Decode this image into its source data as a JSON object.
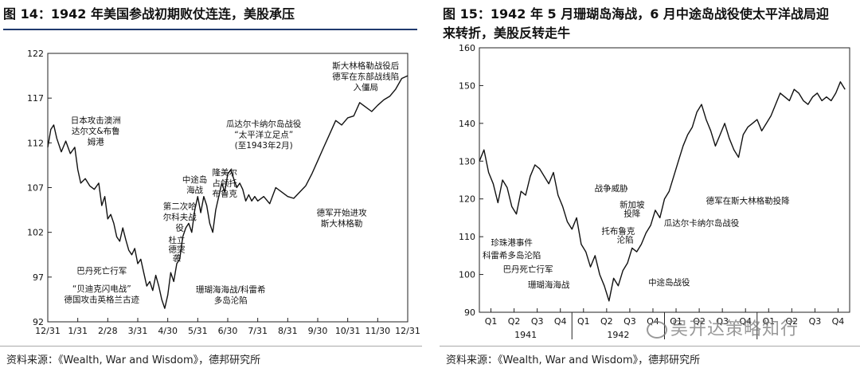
{
  "left": {
    "title": "图 14：1942 年美国参战初期败仗连连，美股承压",
    "source": "资料来源：《Wealth, War and Wisdom》，德邦研究所",
    "chart_data": {
      "type": "line",
      "ylim": [
        92,
        122
      ],
      "yticks": [
        92,
        97,
        102,
        107,
        112,
        117,
        122
      ],
      "xlim": [
        0,
        12
      ],
      "xticks": [
        "12/31",
        "1/31",
        "2/28",
        "3/31",
        "4/30",
        "5/31",
        "6/30",
        "7/31",
        "8/31",
        "9/30",
        "10/31",
        "11/30",
        "12/31"
      ],
      "series": [
        {
          "x": [
            0,
            0.1,
            0.2,
            0.3,
            0.45,
            0.6,
            0.75,
            0.9,
            1.0,
            1.1,
            1.25,
            1.4,
            1.55,
            1.7,
            1.8,
            1.9,
            2.0,
            2.1,
            2.2,
            2.3,
            2.4,
            2.5,
            2.6,
            2.7,
            2.8,
            2.9,
            3.0,
            3.1,
            3.2,
            3.3,
            3.4,
            3.5,
            3.6,
            3.7,
            3.8,
            3.9,
            4.0,
            4.1,
            4.2,
            4.3,
            4.4,
            4.5,
            4.6,
            4.7,
            4.8,
            4.9,
            5.0,
            5.1,
            5.2,
            5.3,
            5.4,
            5.5,
            5.6,
            5.7,
            5.8,
            5.9,
            6.0,
            6.1,
            6.2,
            6.3,
            6.4,
            6.5,
            6.6,
            6.7,
            6.8,
            6.9,
            7.0,
            7.2,
            7.4,
            7.6,
            7.8,
            8.0,
            8.2,
            8.4,
            8.6,
            8.8,
            9.0,
            9.2,
            9.4,
            9.6,
            9.8,
            10.0,
            10.2,
            10.4,
            10.6,
            10.8,
            11.0,
            11.2,
            11.4,
            11.6,
            11.8,
            12.0
          ],
          "y": [
            111.5,
            113.5,
            114.0,
            112.5,
            111.0,
            112.2,
            110.8,
            111.5,
            109.0,
            107.5,
            108.0,
            107.2,
            106.8,
            107.5,
            105.0,
            106.0,
            103.5,
            104.0,
            103.0,
            101.5,
            101.0,
            102.5,
            101.2,
            100.0,
            99.5,
            100.2,
            98.5,
            99.0,
            97.5,
            96.0,
            96.5,
            95.5,
            97.2,
            96.0,
            94.5,
            93.5,
            95.0,
            97.5,
            96.5,
            98.5,
            99.0,
            101.5,
            102.5,
            103.0,
            102.0,
            104.5,
            106.0,
            104.2,
            106.0,
            105.0,
            103.0,
            102.0,
            104.5,
            106.0,
            107.5,
            106.5,
            108.5,
            109.0,
            108.0,
            107.0,
            107.5,
            106.8,
            105.5,
            106.2,
            105.5,
            106.0,
            105.5,
            106.0,
            105.2,
            107.0,
            106.5,
            106.0,
            105.8,
            106.5,
            107.2,
            108.5,
            110.0,
            111.5,
            113.0,
            114.5,
            114.0,
            114.8,
            115.0,
            116.5,
            116.0,
            115.5,
            116.2,
            116.8,
            117.2,
            118.0,
            119.2,
            119.5
          ]
        }
      ],
      "annotations": [
        {
          "text": "日本攻击澳洲",
          "x": 1.6,
          "y": 114.2
        },
        {
          "text": "达尔文&布鲁",
          "x": 1.6,
          "y": 113.0
        },
        {
          "text": "姆港",
          "x": 1.6,
          "y": 111.8
        },
        {
          "text": "中途岛",
          "x": 4.9,
          "y": 107.6
        },
        {
          "text": "海战",
          "x": 4.9,
          "y": 106.4
        },
        {
          "text": "隆美尔",
          "x": 5.9,
          "y": 108.4
        },
        {
          "text": "占领托",
          "x": 5.9,
          "y": 107.2
        },
        {
          "text": "布鲁克",
          "x": 5.9,
          "y": 106.0
        },
        {
          "text": "第二次哈",
          "x": 4.4,
          "y": 104.6
        },
        {
          "text": "尔科夫战",
          "x": 4.4,
          "y": 103.4
        },
        {
          "text": "役",
          "x": 4.4,
          "y": 102.2
        },
        {
          "text": "杜立",
          "x": 4.3,
          "y": 100.8
        },
        {
          "text": "德突",
          "x": 4.3,
          "y": 99.8
        },
        {
          "text": "袭",
          "x": 4.3,
          "y": 98.8
        },
        {
          "text": "巴丹死亡行军",
          "x": 1.8,
          "y": 97.4
        },
        {
          "text": "“贝迪克闪电战”",
          "x": 1.8,
          "y": 95.4
        },
        {
          "text": "德国攻击英格兰古迹",
          "x": 1.8,
          "y": 94.2
        },
        {
          "text": "珊瑚海海战/科雷希",
          "x": 6.1,
          "y": 95.3
        },
        {
          "text": "多岛沦陷",
          "x": 6.1,
          "y": 94.1
        },
        {
          "text": "瓜达尔卡纳尔岛战役",
          "x": 7.2,
          "y": 113.8
        },
        {
          "text": "“太平洋立足点”",
          "x": 7.2,
          "y": 112.6
        },
        {
          "text": "(至1943年2月)",
          "x": 7.2,
          "y": 111.4
        },
        {
          "text": "德军开始进攻",
          "x": 9.8,
          "y": 103.9
        },
        {
          "text": "斯大林格勒",
          "x": 9.8,
          "y": 102.7
        },
        {
          "text": "斯大林格勒战役后",
          "x": 10.6,
          "y": 120.3
        },
        {
          "text": "德军在东部战线陷",
          "x": 10.6,
          "y": 119.1
        },
        {
          "text": "入僵局",
          "x": 10.6,
          "y": 117.9
        }
      ]
    }
  },
  "right": {
    "title_line1": "图 15：1942 年 5 月珊瑚岛海战，6 月中途岛战役使太平洋战局迎",
    "title_line2": "来转折，美股反转走牛",
    "source": "资料来源：《Wealth, War and Wisdom》，德邦研究所",
    "watermark": "吴开达策略知行",
    "chart_data": {
      "type": "line",
      "ylim": [
        90,
        160
      ],
      "yticks": [
        90,
        100,
        110,
        120,
        130,
        140,
        150,
        160
      ],
      "xlim": [
        0,
        16
      ],
      "xticks": [
        "Q1",
        "Q2",
        "Q3",
        "Q4",
        "Q1",
        "Q2",
        "Q3",
        "Q4",
        "Q1",
        "Q2",
        "Q3",
        "Q4",
        "Q1",
        "Q2",
        "Q3",
        "Q4"
      ],
      "year_labels": [
        {
          "text": "1941",
          "x": 2
        },
        {
          "text": "1942",
          "x": 6
        }
      ],
      "series": [
        {
          "x": [
            0,
            0.2,
            0.4,
            0.6,
            0.8,
            1.0,
            1.2,
            1.4,
            1.6,
            1.8,
            2.0,
            2.2,
            2.4,
            2.6,
            2.8,
            3.0,
            3.2,
            3.4,
            3.6,
            3.8,
            4.0,
            4.2,
            4.4,
            4.6,
            4.8,
            5.0,
            5.2,
            5.4,
            5.6,
            5.8,
            6.0,
            6.2,
            6.4,
            6.6,
            6.8,
            7.0,
            7.2,
            7.4,
            7.6,
            7.8,
            8.0,
            8.2,
            8.4,
            8.6,
            8.8,
            9.0,
            9.2,
            9.4,
            9.6,
            9.8,
            10.0,
            10.2,
            10.4,
            10.6,
            10.8,
            11.0,
            11.2,
            11.4,
            11.6,
            11.8,
            12.0,
            12.2,
            12.4,
            12.6,
            12.8,
            13.0,
            13.2,
            13.4,
            13.6,
            13.8,
            14.0,
            14.2,
            14.4,
            14.6,
            14.8,
            15.0,
            15.2,
            15.4,
            15.6,
            15.8
          ],
          "y": [
            130,
            133,
            127,
            124,
            119,
            125,
            123,
            118,
            116,
            122,
            121,
            126,
            129,
            128,
            126,
            124,
            127,
            121,
            118,
            114,
            112,
            115,
            108,
            106,
            102,
            105,
            100,
            97,
            93,
            99,
            97,
            101,
            103,
            107,
            106,
            108,
            111,
            113,
            117,
            115,
            120,
            122,
            126,
            130,
            134,
            137,
            139,
            143,
            145,
            141,
            138,
            134,
            137,
            140,
            136,
            133,
            131,
            137,
            139,
            140,
            141,
            138,
            140,
            142,
            145,
            148,
            147,
            146,
            149,
            148,
            146,
            145,
            147,
            148,
            146,
            147,
            146,
            148,
            151,
            149
          ]
        }
      ],
      "annotations": [
        {
          "text": "战争威胁",
          "x": 5.7,
          "y": 122.0
        },
        {
          "text": "新加坡",
          "x": 6.6,
          "y": 117.7
        },
        {
          "text": "投降",
          "x": 6.6,
          "y": 115.4
        },
        {
          "text": "托布鲁克",
          "x": 6.0,
          "y": 110.8
        },
        {
          "text": "沦陷",
          "x": 6.3,
          "y": 108.5
        },
        {
          "text": "珍珠港事件",
          "x": 1.4,
          "y": 107.7
        },
        {
          "text": "科雷希多岛沦陷",
          "x": 1.4,
          "y": 104.3
        },
        {
          "text": "巴丹死亡行军",
          "x": 2.1,
          "y": 100.7
        },
        {
          "text": "珊瑚海海战",
          "x": 3.0,
          "y": 96.5
        },
        {
          "text": "中途岛战役",
          "x": 8.2,
          "y": 97.2
        },
        {
          "text": "德军在斯大林格勒投降",
          "x": 11.6,
          "y": 118.8
        },
        {
          "text": "瓜达尔卡纳尔岛战役",
          "x": 9.6,
          "y": 112.9
        }
      ]
    }
  }
}
